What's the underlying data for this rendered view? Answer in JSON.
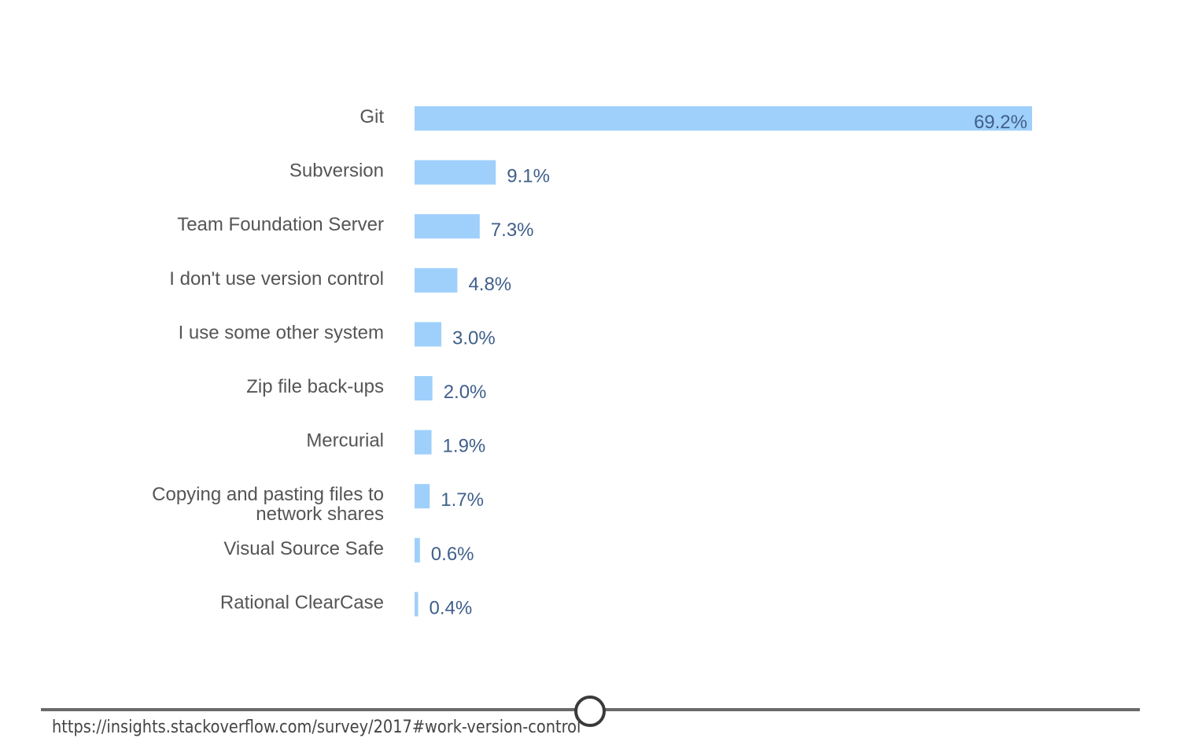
{
  "chart_data": {
    "type": "bar",
    "orientation": "horizontal",
    "categories": [
      [
        "Git"
      ],
      [
        "Subversion"
      ],
      [
        "Team Foundation Server"
      ],
      [
        "I don't use version control"
      ],
      [
        "I use some other system"
      ],
      [
        "Zip file back-ups"
      ],
      [
        "Mercurial"
      ],
      [
        "Copying and pasting files to",
        "network shares"
      ],
      [
        "Visual Source Safe"
      ],
      [
        "Rational ClearCase"
      ]
    ],
    "values": [
      69.2,
      9.1,
      7.3,
      4.8,
      3.0,
      2.0,
      1.9,
      1.7,
      0.6,
      0.4
    ],
    "value_labels": [
      "69.2%",
      "9.1%",
      "7.3%",
      "4.8%",
      "3.0%",
      "2.0%",
      "1.9%",
      "1.7%",
      "0.6%",
      "0.4%"
    ],
    "unit": "%",
    "xlim": [
      0,
      69.2
    ],
    "grid": false,
    "bar_color": "#9fd0fb",
    "label_color": "#555555",
    "value_label_color": "#3f5f8a"
  },
  "footer": {
    "source_url": "https://insights.stackoverflow.com/survey/2017#work-version-control"
  }
}
